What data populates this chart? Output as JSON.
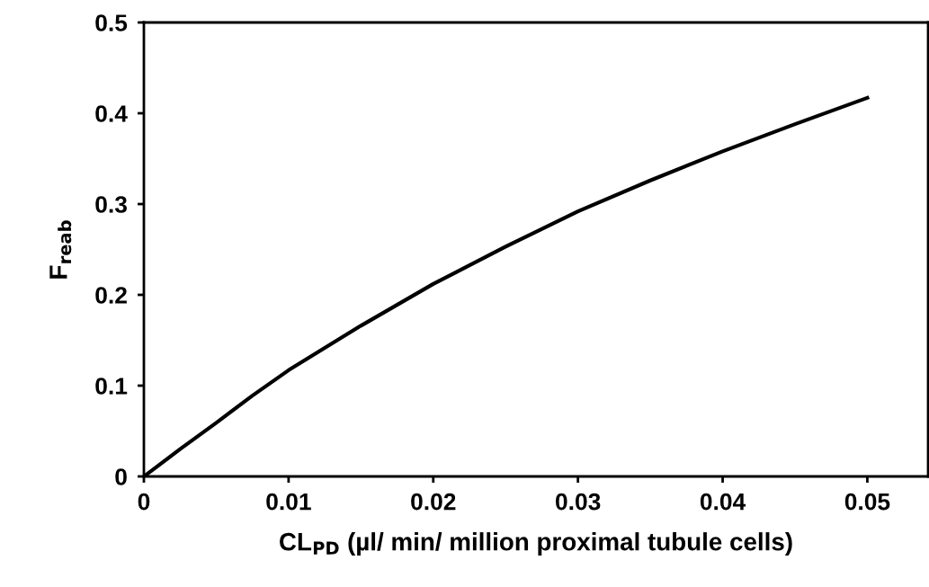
{
  "chart_data": {
    "type": "line",
    "xlabel": "CL$_{PD}$ (µl/ min/ million proximal tubule cells)",
    "ylabel": "F$_{reab}$",
    "x": [
      0,
      0.0025,
      0.005,
      0.0075,
      0.01,
      0.015,
      0.02,
      0.025,
      0.03,
      0.035,
      0.04,
      0.045,
      0.05
    ],
    "series": [
      {
        "color": "#000000",
        "values": [
          0,
          0.03,
          0.059,
          0.089,
          0.117,
          0.166,
          0.212,
          0.253,
          0.292,
          0.326,
          0.358,
          0.388,
          0.417
        ]
      }
    ],
    "xlim": [
      0,
      0.0542
    ],
    "xticks": [
      0,
      0.01,
      0.02,
      0.03,
      0.04,
      0.05
    ],
    "ylim": [
      0,
      0.5
    ],
    "yticks": [
      0,
      0.1,
      0.2,
      0.3,
      0.4,
      0.5
    ],
    "grid": false,
    "marker": "none",
    "line_style": "solid"
  }
}
